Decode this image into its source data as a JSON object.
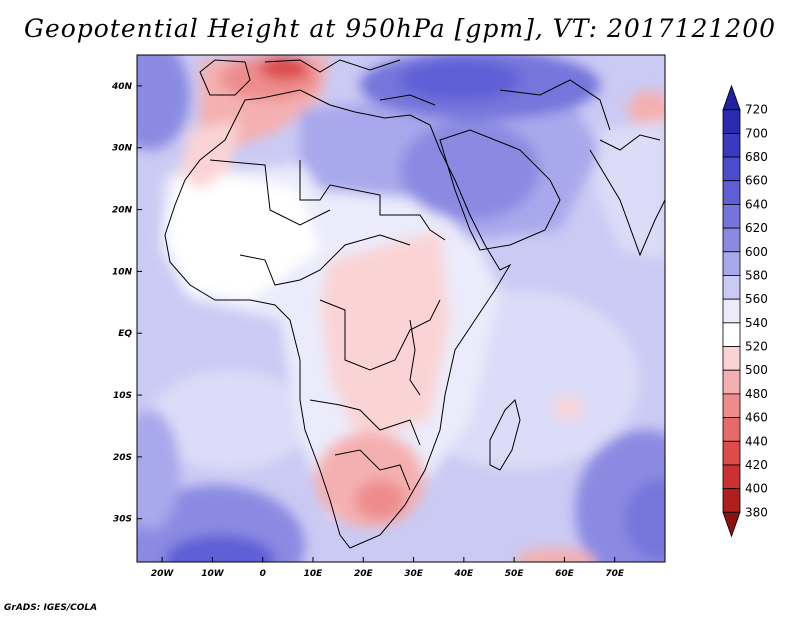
{
  "title": "Geopotential Height at 950hPa [gpm], VT: 2017121200",
  "credit": "GrADS: IGES/COLA",
  "map": {
    "lon_range": [
      -25,
      80
    ],
    "lat_range": [
      -37,
      45
    ],
    "x_ticks": [
      {
        "value": -20,
        "label": "20W"
      },
      {
        "value": -10,
        "label": "10W"
      },
      {
        "value": 0,
        "label": "0"
      },
      {
        "value": 10,
        "label": "10E"
      },
      {
        "value": 20,
        "label": "20E"
      },
      {
        "value": 30,
        "label": "30E"
      },
      {
        "value": 40,
        "label": "40E"
      },
      {
        "value": 50,
        "label": "50E"
      },
      {
        "value": 60,
        "label": "60E"
      },
      {
        "value": 70,
        "label": "70E"
      }
    ],
    "y_ticks": [
      {
        "value": 40,
        "label": "40N"
      },
      {
        "value": 30,
        "label": "30N"
      },
      {
        "value": 20,
        "label": "20N"
      },
      {
        "value": 10,
        "label": "10N"
      },
      {
        "value": 0,
        "label": "EQ"
      },
      {
        "value": -10,
        "label": "10S"
      },
      {
        "value": -20,
        "label": "20S"
      },
      {
        "value": -30,
        "label": "30S"
      }
    ]
  },
  "colorbar": {
    "levels": [
      "720",
      "700",
      "680",
      "660",
      "640",
      "620",
      "600",
      "580",
      "560",
      "540",
      "520",
      "500",
      "480",
      "460",
      "440",
      "420",
      "400",
      "380"
    ],
    "colors": [
      "#2020a0",
      "#2a2ab0",
      "#3a3ac0",
      "#4b4bcc",
      "#5e5ed6",
      "#7474dc",
      "#8a8ae2",
      "#a8a8ec",
      "#cacaf4",
      "#ebebfb",
      "#ffffff",
      "#fad4d4",
      "#f4b0b0",
      "#ee8c8c",
      "#e66a6a",
      "#dd4b4b",
      "#cc3030",
      "#b01e1e",
      "#901010"
    ]
  }
}
